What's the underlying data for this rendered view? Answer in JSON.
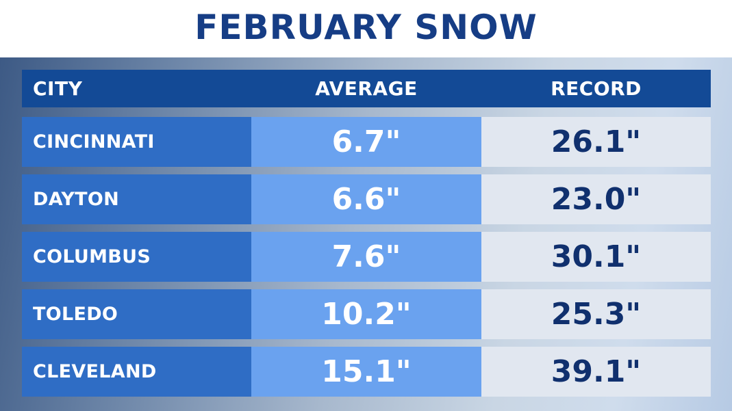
{
  "title": "FEBRUARY SNOW",
  "chart_data": {
    "type": "table",
    "title": "FEBRUARY SNOW",
    "columns": [
      "CITY",
      "AVERAGE",
      "RECORD"
    ],
    "rows": [
      {
        "city": "CINCINNATI",
        "average": "6.7\"",
        "record": "26.1\""
      },
      {
        "city": "DAYTON",
        "average": "6.6\"",
        "record": "23.0\""
      },
      {
        "city": "COLUMBUS",
        "average": "7.6\"",
        "record": "30.1\""
      },
      {
        "city": "TOLEDO",
        "average": "10.2\"",
        "record": "25.3\""
      },
      {
        "city": "CLEVELAND",
        "average": "15.1\"",
        "record": "39.1\""
      }
    ]
  },
  "colors": {
    "title": "#163d85",
    "header": "#134a96",
    "city_cell": "#2f6dc5",
    "average_cell": "#6aa2ef",
    "record_cell": "#e1e7f0",
    "record_text": "#10306e"
  }
}
